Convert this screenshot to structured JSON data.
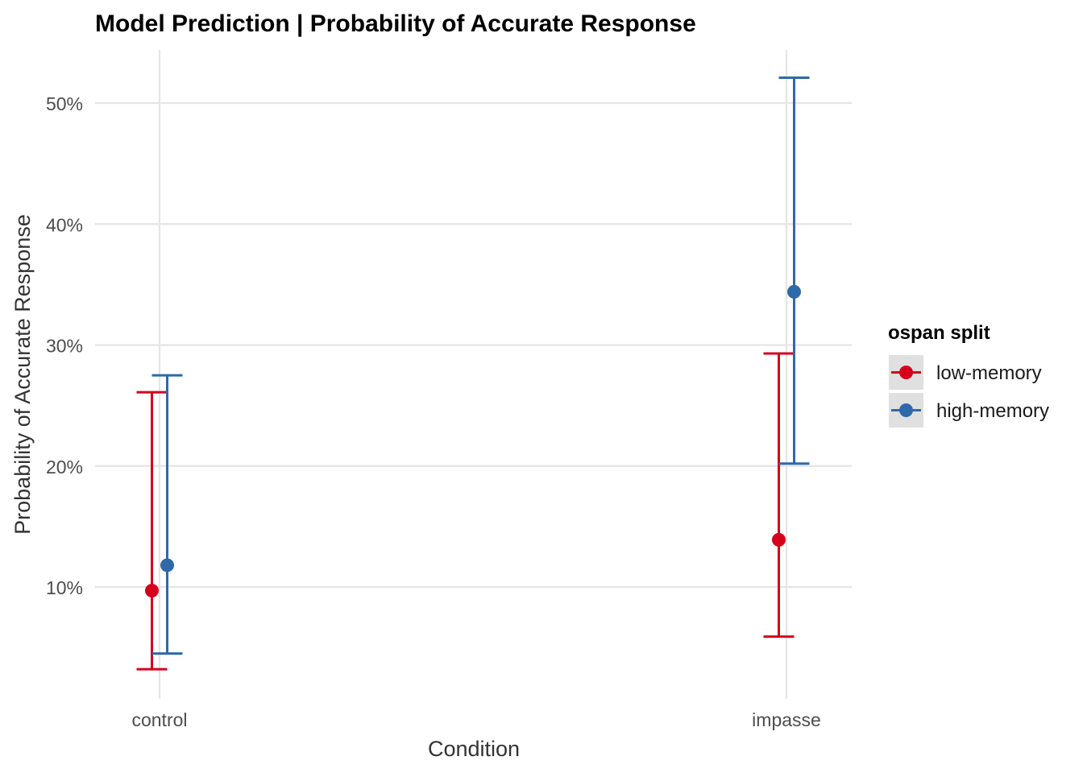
{
  "chart_data": {
    "type": "errorbar",
    "title": "Model Prediction | Probability of Accurate Response",
    "xlabel": "Condition",
    "ylabel": "Probability of Accurate Response",
    "categories": [
      "control",
      "impasse"
    ],
    "y_ticks": [
      0.1,
      0.2,
      0.3,
      0.4,
      0.5
    ],
    "y_tick_labels": [
      "10%",
      "20%",
      "30%",
      "40%",
      "50%"
    ],
    "ylim": [
      0.02,
      0.545
    ],
    "grid": true,
    "legend": {
      "title": "ospan split",
      "placement": "right"
    },
    "series": [
      {
        "name": "low-memory",
        "color": "#d7001c",
        "estimate": [
          0.097,
          0.139
        ],
        "lower": [
          0.032,
          0.059
        ],
        "upper": [
          0.261,
          0.293
        ]
      },
      {
        "name": "high-memory",
        "color": "#2e69a9",
        "estimate": [
          0.118,
          0.344
        ],
        "lower": [
          0.045,
          0.202
        ],
        "upper": [
          0.275,
          0.521
        ]
      }
    ]
  }
}
